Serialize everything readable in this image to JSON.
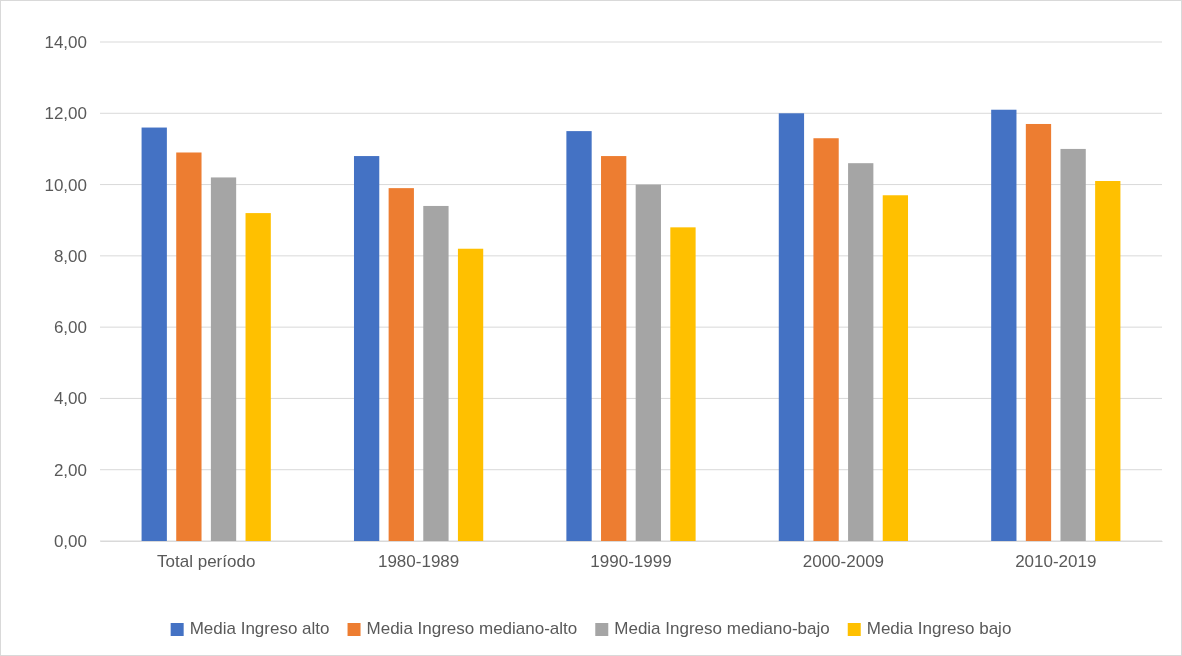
{
  "chart_data": {
    "type": "bar",
    "categories": [
      "Total período",
      "1980-1989",
      "1990-1999",
      "2000-2009",
      "2010-2019"
    ],
    "series": [
      {
        "name": "Media  Ingreso alto",
        "color": "#4472c4",
        "values": [
          11.6,
          10.8,
          11.5,
          12.0,
          12.1
        ]
      },
      {
        "name": "Media  Ingreso mediano-alto",
        "color": "#ed7d31",
        "values": [
          10.9,
          9.9,
          10.8,
          11.3,
          11.7
        ]
      },
      {
        "name": "Media  Ingreso mediano-bajo",
        "color": "#a5a5a5",
        "values": [
          10.2,
          9.4,
          10.0,
          10.6,
          11.0
        ]
      },
      {
        "name": "Media  Ingreso bajo",
        "color": "#ffc000",
        "values": [
          9.2,
          8.2,
          8.8,
          9.7,
          10.1
        ]
      }
    ],
    "ylim": [
      0,
      14
    ],
    "yticks": [
      {
        "value": 0,
        "label": "0,00"
      },
      {
        "value": 2,
        "label": "2,00"
      },
      {
        "value": 4,
        "label": "4,00"
      },
      {
        "value": 6,
        "label": "6,00"
      },
      {
        "value": 8,
        "label": "8,00"
      },
      {
        "value": 10,
        "label": "10,00"
      },
      {
        "value": 12,
        "label": "12,00"
      },
      {
        "value": 14,
        "label": "14,00"
      }
    ],
    "grid": "y",
    "legend": "bottom"
  }
}
